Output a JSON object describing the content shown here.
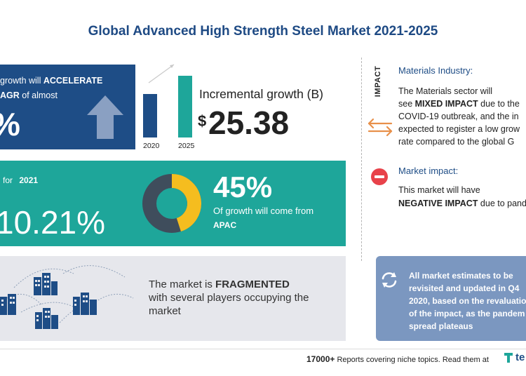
{
  "title": "Global Advanced High Strength Steel Market 2021-2025",
  "growth_panel": {
    "line1_pre": "growth will",
    "line1_bold": "ACCELERATE",
    "line2_bold": "AGR",
    "line2_post": "of almost",
    "big_value": "%"
  },
  "bar_chart": {
    "categories": [
      "2020",
      "2025"
    ],
    "values": [
      0.62,
      0.88
    ],
    "colors": [
      "#1e4d86",
      "#1ea69a"
    ]
  },
  "incremental": {
    "label": "Incremental growth (B)",
    "symbol": "$",
    "value": "25.38"
  },
  "yoy_panel": {
    "label_pre": "for",
    "label_year": "2021",
    "value": "10.21%",
    "donut_share": 0.45,
    "donut_colors": [
      "#f5bd1f",
      "#3f4d5c"
    ],
    "pct": "45%",
    "pct_desc": "Of growth will come from",
    "pct_region": "APAC"
  },
  "fragment_panel": {
    "line1_pre": "The market is",
    "line1_bold": "FRAGMENTED",
    "line2": "with several players occupying the",
    "line3": "market"
  },
  "impact": {
    "tag": "IMPACT",
    "materials_title": "Materials Industry:",
    "materials_l1": "The Materials sector will",
    "materials_l2_pre": "see",
    "materials_l2_bold": "MIXED IMPACT",
    "materials_l2_post": "due to the",
    "materials_l3": "COVID-19 outbreak, and the in",
    "materials_l4": "expected to register a low grow",
    "materials_l5": "rate compared to the global G",
    "market_title": "Market impact:",
    "market_l1": "This market will have",
    "market_l2_bold": "NEGATIVE IMPACT",
    "market_l2_post": "due to pand"
  },
  "note": {
    "l1": "All market estimates to be",
    "l2": "revisited and updated in Q4",
    "l3": "2020, based on the revaluatio",
    "l4": "of the impact, as the pandem",
    "l5": "spread plateaus"
  },
  "footer": {
    "count": "17000+",
    "text": "Reports covering niche topics. Read them at",
    "logo": "te"
  },
  "colors": {
    "navy": "#1e4d86",
    "teal": "#1ea69a",
    "grey_panel": "#e6e7ec",
    "steel_blue": "#7b97c0",
    "red": "#e8424a"
  }
}
